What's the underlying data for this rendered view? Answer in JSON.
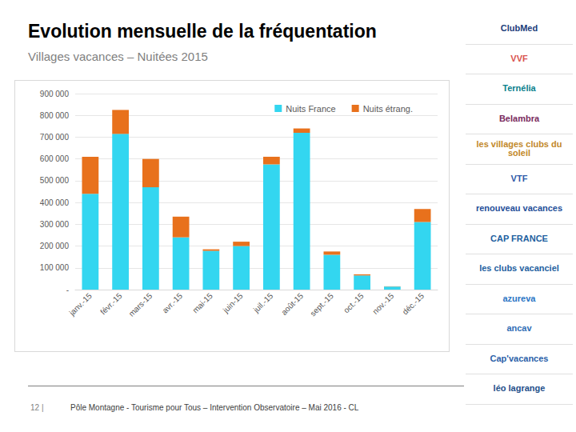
{
  "chart_data": {
    "type": "bar",
    "title": "Evolution mensuelle de la fréquentation",
    "subtitle": "Villages vacances – Nuitées 2015",
    "categories": [
      "janv.-15",
      "févr.-15",
      "mars-15",
      "avr.-15",
      "mai-15",
      "juin-15",
      "juil.-15",
      "août-15",
      "sept.-15",
      "oct.-15",
      "nov.-15",
      "déc.-15"
    ],
    "series": [
      {
        "name": "Nuits France",
        "color": "#33d6f0",
        "values": [
          440000,
          715000,
          470000,
          240000,
          178000,
          200000,
          575000,
          720000,
          160000,
          65000,
          14000,
          310000
        ]
      },
      {
        "name": "Nuits étrang.",
        "color": "#e8711c",
        "values": [
          170000,
          110000,
          130000,
          95000,
          7000,
          20000,
          35000,
          20000,
          15000,
          5000,
          1000,
          60000
        ]
      }
    ],
    "stacked": true,
    "ylim": [
      0,
      900000
    ],
    "yticks": [
      {
        "value": 0,
        "label": "-"
      },
      {
        "value": 100000,
        "label": "100 000"
      },
      {
        "value": 200000,
        "label": "200 000"
      },
      {
        "value": 300000,
        "label": "300 000"
      },
      {
        "value": 400000,
        "label": "400 000"
      },
      {
        "value": 500000,
        "label": "500 000"
      },
      {
        "value": 600000,
        "label": "600 000"
      },
      {
        "value": 700000,
        "label": "700 000"
      },
      {
        "value": 800000,
        "label": "800 000"
      },
      {
        "value": 900000,
        "label": "900 000"
      }
    ],
    "grid": true,
    "legend": "top-right"
  },
  "page": {
    "page_number": "12 |",
    "footer": "Pôle Montagne - Tourisme pour Tous – Intervention Observatoire – Mai 2016 - CL",
    "logos": [
      "ClubMed",
      "VVF",
      "Ternélia",
      "Belambra",
      "les villages clubs du soleil",
      "VTF",
      "renouveau vacances",
      "CAP FRANCE",
      "les clubs vacanciel",
      "azureva",
      "ancav",
      "Cap'vacances",
      "léo lagrange"
    ]
  }
}
